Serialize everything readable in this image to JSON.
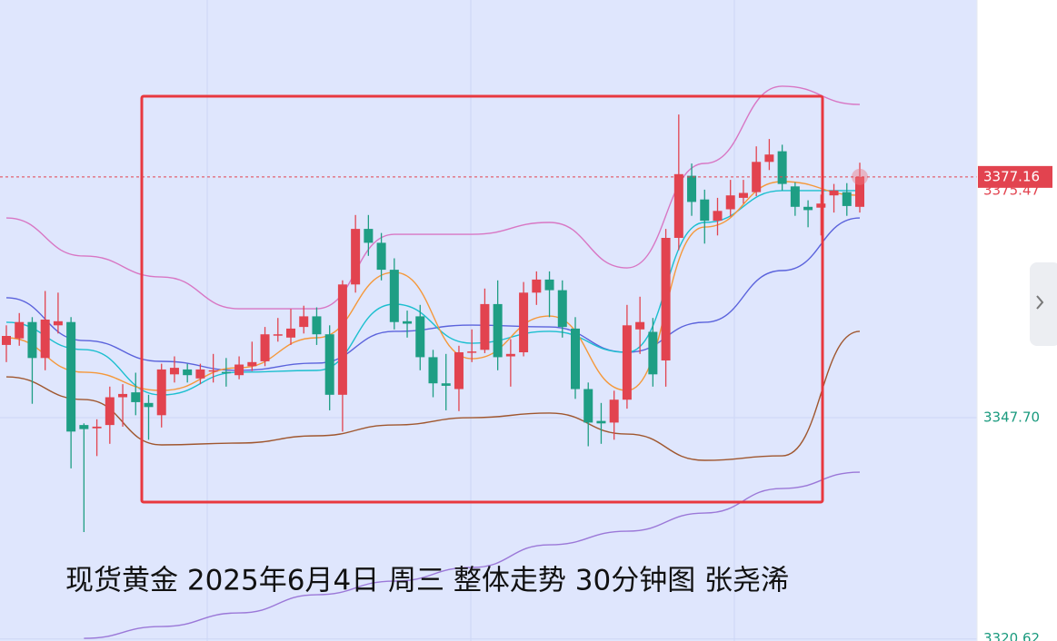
{
  "chart_data": {
    "type": "candlestick",
    "title": "现货黄金 2025年6月4日 周三  整体走势 30分钟图 张尧浠",
    "ylim": [
      3320.37,
      3398.81
    ],
    "yticks": [
      {
        "value": 3347.7,
        "label": "3347.70"
      },
      {
        "value": 3320.62,
        "label": "3320.62"
      }
    ],
    "grid": true,
    "up_color": "#e2434f",
    "down_color": "#1e9e84",
    "price_line": {
      "value": 3377.16,
      "label": "3377.16",
      "color": "#e2434f"
    },
    "secondary_price": {
      "value": 3375.47,
      "label": "3375.47"
    },
    "candles": {
      "open": [
        3356.6,
        3357.4,
        3359.4,
        3355,
        3359,
        3359.4,
        3346.8,
        3346.4,
        3346.8,
        3350.2,
        3350.8,
        3349.5,
        3348,
        3353,
        3353.6,
        3352.5,
        3353.4,
        3353.3,
        3352.9,
        3354,
        3354.6,
        3357.8,
        3357.5,
        3358.8,
        3360.1,
        3357.9,
        3350.5,
        3364,
        3370.8,
        3369.1,
        3365.8,
        3359.5,
        3360.1,
        3355.1,
        3351.9,
        3351.2,
        3355.7,
        3356,
        3361.6,
        3355.2,
        3355.7,
        3363,
        3364.6,
        3363.3,
        3358.6,
        3351.2,
        3347.3,
        3347.1,
        3349.9,
        3358.5,
        3358.2,
        3354.7,
        3369.7,
        3377.3,
        3374.4,
        3371.8,
        3373.2,
        3374.6,
        3375.3,
        3379,
        3380.3,
        3376,
        3373.5,
        3373.4,
        3374.9,
        3375.3,
        3373.5
      ],
      "high": [
        3359,
        3360.5,
        3360,
        3363.2,
        3363,
        3360,
        3347,
        3347.5,
        3351.5,
        3351.8,
        3353.2,
        3350.5,
        3354.3,
        3355.2,
        3354.3,
        3354.3,
        3355.5,
        3355,
        3355.2,
        3357,
        3358.8,
        3359.9,
        3361,
        3361.4,
        3361.2,
        3359,
        3364.5,
        3372.5,
        3372.5,
        3370.3,
        3367.2,
        3360.8,
        3361.5,
        3356,
        3355.5,
        3356.5,
        3358.5,
        3363.5,
        3364.5,
        3357.3,
        3364.3,
        3365.6,
        3365.6,
        3364.5,
        3360,
        3352,
        3349.5,
        3351,
        3361.5,
        3362.5,
        3359.9,
        3370.8,
        3384.8,
        3378.8,
        3375.6,
        3374.6,
        3376.8,
        3376.8,
        3380.9,
        3381.8,
        3381.1,
        3376.5,
        3374.3,
        3375,
        3376.3,
        3376.4,
        3378.9
      ],
      "low": [
        3354.5,
        3356.5,
        3349.4,
        3353.5,
        3358,
        3341.5,
        3333.7,
        3343,
        3344.5,
        3346.6,
        3348,
        3345,
        3346.5,
        3352,
        3352,
        3351.8,
        3352,
        3351.5,
        3352.4,
        3353.4,
        3354,
        3357,
        3356.6,
        3358,
        3356.6,
        3348.6,
        3346,
        3363,
        3367.5,
        3364.5,
        3358.5,
        3357.5,
        3353.5,
        3350.2,
        3348.6,
        3348.5,
        3354.5,
        3355.6,
        3353.5,
        3351.5,
        3355.2,
        3361.5,
        3360,
        3357.5,
        3350,
        3344.2,
        3344.5,
        3345,
        3348.8,
        3355.5,
        3351.5,
        3351.5,
        3368.2,
        3372.4,
        3369,
        3370,
        3372.3,
        3373.9,
        3374.8,
        3378,
        3375.5,
        3372.4,
        3371,
        3370,
        3372.8,
        3372.4,
        3372.8
      ],
      "close": [
        3357.7,
        3359.4,
        3355,
        3359.7,
        3359.5,
        3346,
        3346.3,
        3346.6,
        3350.2,
        3350.6,
        3349.6,
        3349,
        3353.6,
        3353.8,
        3352.9,
        3353.6,
        3353.5,
        3353.2,
        3354.2,
        3354.5,
        3357.9,
        3357.9,
        3358.6,
        3360.1,
        3357.9,
        3350.5,
        3364,
        3370.8,
        3369.1,
        3365.8,
        3359.4,
        3359.2,
        3355.1,
        3351.9,
        3351.6,
        3355.7,
        3355.8,
        3361.6,
        3355.1,
        3355.5,
        3363,
        3364.6,
        3363.3,
        3358.8,
        3351.2,
        3347.1,
        3347,
        3349.9,
        3359,
        3359.4,
        3353,
        3369.7,
        3377.5,
        3374.1,
        3371.8,
        3373,
        3374.9,
        3375.2,
        3379,
        3379.9,
        3376.3,
        3373.5,
        3373.1,
        3373.9,
        3375.5,
        3373.6,
        3377.16
      ]
    },
    "line_x": [
      0,
      6,
      12,
      18,
      24,
      30,
      36,
      42,
      48,
      54,
      60,
      66
    ],
    "lines": [
      {
        "color": "#d877c4",
        "values": [
          3372.14,
          3367.48,
          3364.92,
          3361.03,
          3361.03,
          3370.14,
          3370.14,
          3371.59,
          3366.03,
          3378.81,
          3388.26,
          3386.03
        ]
      },
      {
        "color": "#a0572f",
        "values": [
          3352.7,
          3349.92,
          3344.37,
          3344.59,
          3345.48,
          3346.81,
          3347.7,
          3348.26,
          3345.7,
          3342.48,
          3343.03,
          3358.26
        ]
      },
      {
        "color": "#5b63dc",
        "values": [
          3362.37,
          3357.14,
          3354.59,
          3353.48,
          3354.37,
          3358.26,
          3359.03,
          3358.81,
          3355.7,
          3359.37,
          3365.7,
          3372.14
        ]
      },
      {
        "color": "#1cbfcf",
        "values": [
          3359.37,
          3356.03,
          3350.48,
          3353.26,
          3353.48,
          3361.59,
          3356.81,
          3358.26,
          3355.7,
          3371.59,
          3375.48,
          3375.48
        ]
      },
      {
        "color": "#f5983a",
        "values": [
          3357.48,
          3353.26,
          3351.03,
          3353.81,
          3357.48,
          3365.48,
          3354.92,
          3360.14,
          3351.03,
          3371.03,
          3376.59,
          3374.92
        ]
      },
      {
        "color": "#9b78d8",
        "values": [
          null,
          3320.7,
          3322.14,
          3323.81,
          3326.03,
          3327.7,
          3329.37,
          3332.14,
          3333.81,
          3336.03,
          3339.03,
          3341.03
        ]
      }
    ]
  }
}
